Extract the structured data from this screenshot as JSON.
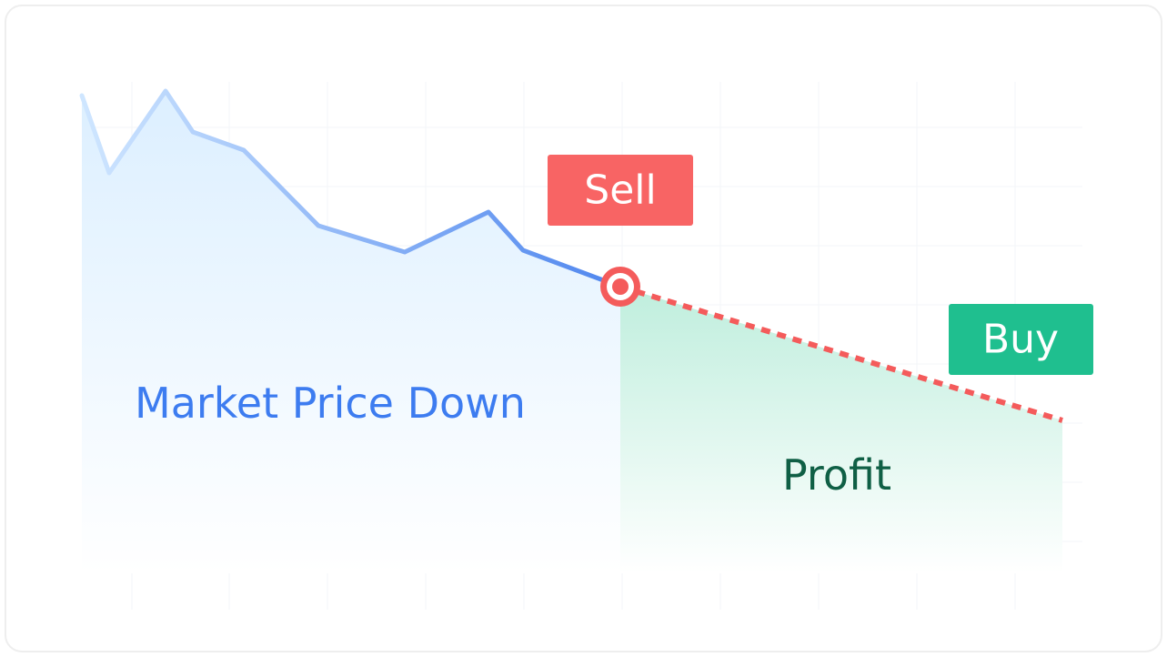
{
  "labels": {
    "sell": "Sell",
    "buy": "Buy",
    "trend": "Market Price Down",
    "profit": "Profit"
  }
}
